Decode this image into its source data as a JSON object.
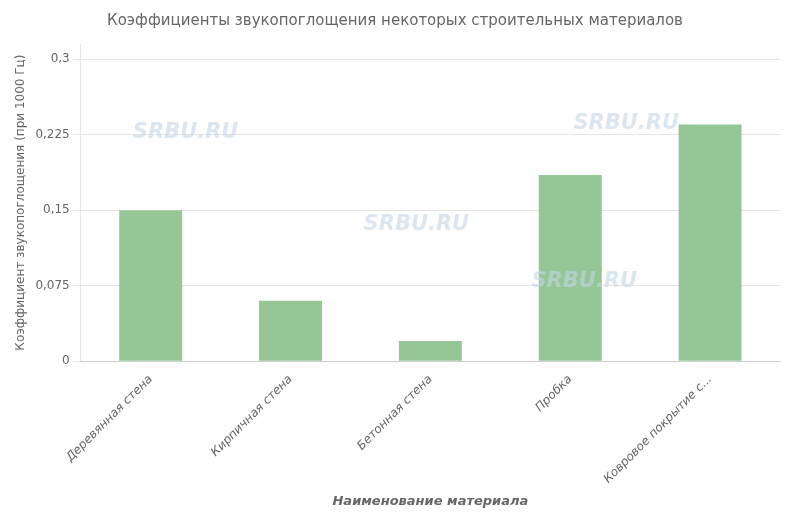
{
  "chart_data": {
    "type": "bar",
    "title": "Коэффициенты звукопоглощения некоторых строительных материалов",
    "xlabel": "Наименование материала",
    "ylabel": "Коэффициент звукопоглощения (при 1000 Гц)",
    "categories": [
      "Деревянная стена",
      "Кирпичная стена",
      "Бетонная стена",
      "Пробка",
      "Ковровое покрытие с..."
    ],
    "values": [
      0.15,
      0.06,
      0.02,
      0.185,
      0.235
    ],
    "color": "#95c695",
    "ylim": [
      0,
      0.315
    ],
    "yticks": [
      0,
      {
        "value": 0.075,
        "label": "0,075"
      },
      {
        "value": 0.15,
        "label": "0,15"
      },
      {
        "value": 0.225,
        "label": "0,225"
      },
      {
        "value": 0.3,
        "label": "0,3"
      }
    ],
    "grid": true,
    "annotations": [
      {
        "text": "SRBU.RU",
        "color": "#c5d5e8"
      },
      {
        "text": "SRBU.RU",
        "color": "#c5d5e8"
      },
      {
        "text": "SRBU.RU",
        "color": "#c5d5e8"
      },
      {
        "text": "SRBU.RU",
        "color": "#c5d5e8"
      }
    ]
  }
}
